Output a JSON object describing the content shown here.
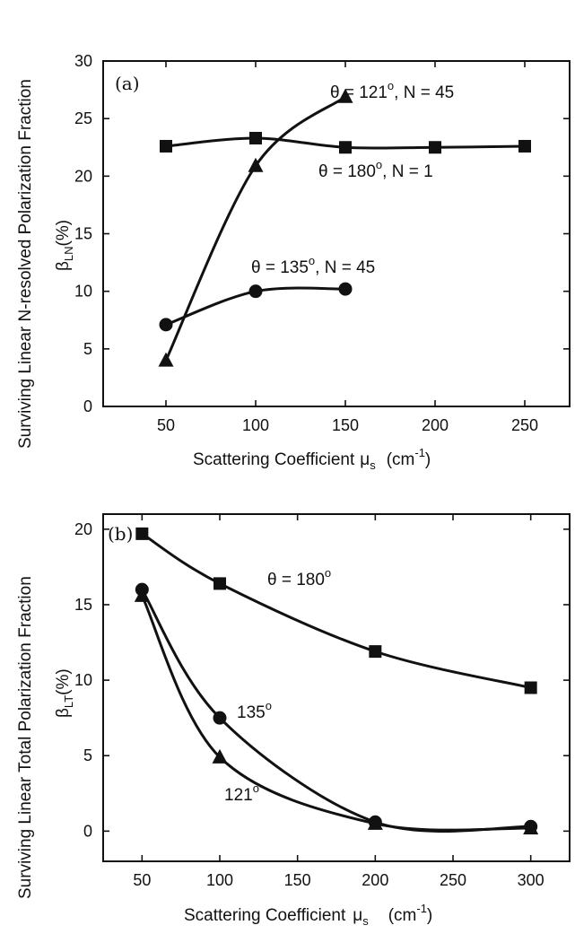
{
  "chart_data": [
    {
      "type": "scatter",
      "panel_label": "(a)",
      "xlabel": {
        "main": "Scattering Coefficient",
        "symbol": "μ",
        "sub": "s",
        "unit_pre": "(cm",
        "unit_sup": "-1",
        "unit_post": ")"
      },
      "ylabel": {
        "outer": "Surviving Linear N-resolved Polarization Fraction",
        "inner_symbol": "β",
        "inner_sub": "LN",
        "inner_unit": "(%)"
      },
      "xlim": [
        15,
        275
      ],
      "ylim": [
        0,
        30
      ],
      "xticks": [
        50,
        100,
        150,
        200,
        250
      ],
      "yticks": [
        0,
        5,
        10,
        15,
        20,
        25,
        30
      ],
      "grid": false,
      "series": [
        {
          "marker": "square",
          "x": [
            50,
            100,
            150,
            200,
            250
          ],
          "y": [
            22.6,
            23.3,
            22.5,
            22.5,
            22.6
          ]
        },
        {
          "marker": "triangle",
          "x": [
            50,
            100,
            150
          ],
          "y": [
            4.0,
            20.9,
            26.9
          ]
        },
        {
          "marker": "circle",
          "x": [
            50,
            100,
            150
          ],
          "y": [
            7.1,
            10.0,
            10.2
          ]
        }
      ],
      "annotations": [
        {
          "main": "θ = 121",
          "sup": "o",
          "post": ", N = 45"
        },
        {
          "main": "θ = 180",
          "sup": "o",
          "post": ", N = 1"
        },
        {
          "main": "θ = 135",
          "sup": "o",
          "post": ", N = 45"
        }
      ]
    },
    {
      "type": "scatter",
      "panel_label": "(b)",
      "xlabel": {
        "main": "Scattering Coefficient",
        "symbol": "μ",
        "sub": "s",
        "unit_pre": "(cm",
        "unit_sup": "-1",
        "unit_post": ")"
      },
      "ylabel": {
        "outer": "Surviving Linear Total Polarization Fraction",
        "inner_symbol": "β",
        "inner_sub": "LT",
        "inner_unit": "(%)"
      },
      "xlim": [
        25,
        325
      ],
      "ylim": [
        -2,
        21
      ],
      "xticks": [
        50,
        100,
        150,
        200,
        250,
        300
      ],
      "yticks": [
        0,
        5,
        10,
        15,
        20
      ],
      "grid": false,
      "series": [
        {
          "marker": "square",
          "x": [
            50,
            100,
            200,
            300
          ],
          "y": [
            19.7,
            16.4,
            11.9,
            9.5
          ]
        },
        {
          "marker": "circle",
          "x": [
            50,
            100,
            200,
            300
          ],
          "y": [
            16.0,
            7.5,
            0.6,
            0.3
          ]
        },
        {
          "marker": "triangle",
          "x": [
            50,
            100,
            200,
            300
          ],
          "y": [
            15.6,
            4.9,
            0.5,
            0.2
          ]
        }
      ],
      "annotations": [
        {
          "main": "θ = 180",
          "sup": "o",
          "post": ""
        },
        {
          "main": "135",
          "sup": "o",
          "post": ""
        },
        {
          "main": "121",
          "sup": "o",
          "post": ""
        }
      ]
    }
  ]
}
